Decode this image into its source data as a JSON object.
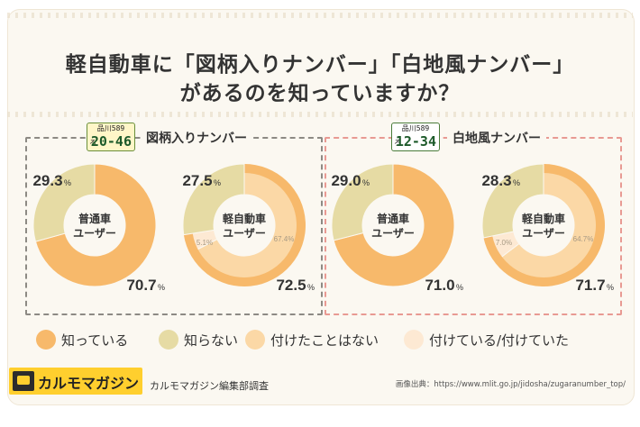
{
  "title": {
    "line1": "軽自動車に「図柄入りナンバー」「白地風ナンバー」",
    "line2": "があるのを知っていますか？"
  },
  "panels": [
    {
      "title": "図柄入りナンバー",
      "plate": {
        "top": "品川589",
        "kana": "ろ",
        "number": "20-46"
      }
    },
    {
      "title": "白地風ナンバー",
      "plate": {
        "top": "品川589",
        "kana": "ろ",
        "number": "12-34"
      }
    }
  ],
  "colors": {
    "know": "#f7b96b",
    "dont_know": "#e6dba4",
    "never_attached": "#fbd8a6",
    "attached": "#fde9d3",
    "panel1_border": "#8d8a84",
    "panel2_border": "#e89a93"
  },
  "chart_data": [
    {
      "type": "pie",
      "center_label": [
        "普通車",
        "ユーザー"
      ],
      "slices": [
        {
          "label": "知っている",
          "value": 70.7
        },
        {
          "label": "知らない",
          "value": 29.3
        }
      ]
    },
    {
      "type": "pie",
      "center_label": [
        "軽自動車",
        "ユーザー"
      ],
      "slices": [
        {
          "label": "知っている",
          "value": 72.5
        },
        {
          "label": "知らない",
          "value": 27.5
        }
      ],
      "breakdown": [
        {
          "label": "付けたことはない",
          "value": 67.4
        },
        {
          "label": "付けている/付けていた",
          "value": 5.1
        }
      ]
    },
    {
      "type": "pie",
      "center_label": [
        "普通車",
        "ユーザー"
      ],
      "slices": [
        {
          "label": "知っている",
          "value": 71.0
        },
        {
          "label": "知らない",
          "value": 29.0
        }
      ]
    },
    {
      "type": "pie",
      "center_label": [
        "軽自動車",
        "ユーザー"
      ],
      "slices": [
        {
          "label": "知っている",
          "value": 71.7
        },
        {
          "label": "知らない",
          "value": 28.3
        }
      ],
      "breakdown": [
        {
          "label": "付けたことはない",
          "value": 64.7
        },
        {
          "label": "付けている/付けていた",
          "value": 7.0
        }
      ]
    }
  ],
  "unit": "%",
  "legend": [
    {
      "label": "知っている",
      "color": "#f7b96b"
    },
    {
      "label": "知らない",
      "color": "#e6dba4"
    },
    {
      "label": "付けたことはない",
      "color": "#fbd8a6"
    },
    {
      "label": "付けている/付けていた",
      "color": "#fde9d3"
    }
  ],
  "footer": {
    "brand": "カルモマガジン",
    "survey": "カルモマガジン編集部調査",
    "source": "画像出典：https://www.mlit.go.jp/jidosha/zugaranumber_top/"
  }
}
